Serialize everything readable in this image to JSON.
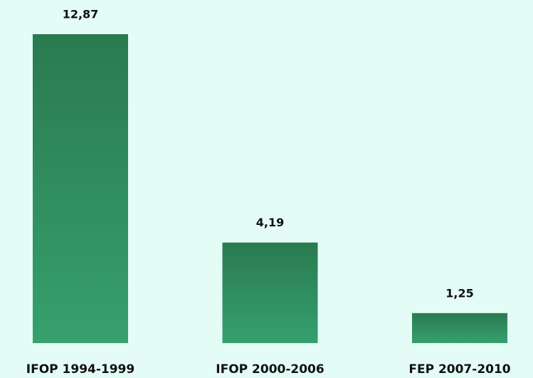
{
  "chart_data": {
    "type": "bar",
    "categories": [
      "IFOP 1994-1999",
      "IFOP 2000-2006",
      "FEP 2007-2010"
    ],
    "values": [
      12.87,
      4.19,
      1.25
    ],
    "value_labels": [
      "12,87",
      "4,19",
      "1,25"
    ]
  }
}
